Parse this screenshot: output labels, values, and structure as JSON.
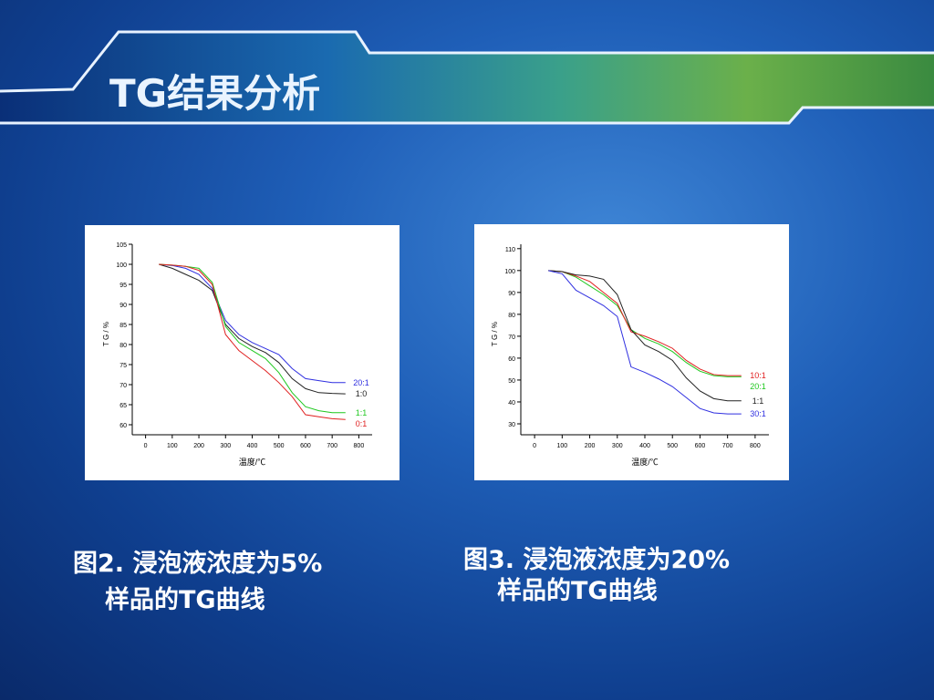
{
  "slide": {
    "title": "TG结果分析",
    "captions": [
      [
        "图2. 浸泡液浓度为5%",
        "样品的TG曲线"
      ],
      [
        "图3. 浸泡液浓度为20%",
        "样品的TG曲线"
      ]
    ]
  },
  "chart_data": [
    {
      "type": "line",
      "x_label": "温度/℃",
      "y_label": "T G / %",
      "x": [
        50,
        100,
        150,
        200,
        250,
        300,
        350,
        400,
        450,
        500,
        550,
        600,
        650,
        700,
        750
      ],
      "xlim": [
        -50,
        850
      ],
      "xticks": [
        0,
        100,
        200,
        300,
        400,
        500,
        600,
        700,
        800
      ],
      "ylim": [
        57.5,
        105
      ],
      "yticks": [
        60,
        65,
        70,
        75,
        80,
        85,
        90,
        95,
        100,
        105
      ],
      "series": [
        {
          "name": "20:1",
          "color": "#2f2fe0",
          "values": [
            100,
            99.7,
            99,
            97.5,
            94,
            86,
            82.5,
            80.5,
            79,
            77.5,
            74,
            71.5,
            71,
            70.5,
            70.5
          ]
        },
        {
          "name": "1:0",
          "color": "#222222",
          "values": [
            100,
            99,
            97.5,
            96,
            93.5,
            85,
            81.5,
            79.5,
            78,
            75.5,
            71.5,
            69,
            68,
            67.8,
            67.7
          ]
        },
        {
          "name": "1:1",
          "color": "#1fc81f",
          "values": [
            100,
            99.8,
            99.5,
            99,
            95.5,
            84.5,
            80.5,
            78.5,
            76.5,
            73,
            68,
            64.5,
            63.5,
            63,
            63
          ]
        },
        {
          "name": "0:1",
          "color": "#e02020",
          "values": [
            100,
            99.8,
            99.5,
            98.5,
            95,
            82.5,
            78.5,
            76,
            73.5,
            70.5,
            67,
            62.5,
            62,
            61.5,
            61.3
          ]
        }
      ]
    },
    {
      "type": "line",
      "x_label": "温度/℃",
      "y_label": "T G / %",
      "x": [
        50,
        100,
        150,
        200,
        250,
        300,
        350,
        400,
        450,
        500,
        550,
        600,
        650,
        700,
        750
      ],
      "xlim": [
        -50,
        850
      ],
      "xticks": [
        0,
        100,
        200,
        300,
        400,
        500,
        600,
        700,
        800
      ],
      "ylim": [
        25,
        112
      ],
      "yticks": [
        30,
        40,
        50,
        60,
        70,
        80,
        90,
        100,
        110
      ],
      "series": [
        {
          "name": "20:1",
          "color": "#1fc81f",
          "values": [
            100,
            99.5,
            97,
            93,
            89,
            84,
            73,
            69,
            66.5,
            63,
            58,
            54,
            52,
            51.5,
            51.5
          ]
        },
        {
          "name": "10:1",
          "color": "#e02020",
          "values": [
            100,
            99.5,
            97.5,
            95,
            90,
            85,
            72,
            70,
            67.5,
            64.5,
            59,
            55,
            52.5,
            52,
            52
          ]
        },
        {
          "name": "1:1",
          "color": "#222222",
          "values": [
            100,
            99.5,
            98,
            97.5,
            96,
            89,
            73,
            66,
            63,
            59,
            51,
            45,
            41.5,
            40.5,
            40.5
          ]
        },
        {
          "name": "30:1",
          "color": "#2f2fe0",
          "values": [
            100,
            98.5,
            91,
            87.5,
            84,
            79,
            56,
            53.5,
            50.5,
            47,
            42,
            37,
            35,
            34.5,
            34.5
          ]
        }
      ]
    }
  ]
}
